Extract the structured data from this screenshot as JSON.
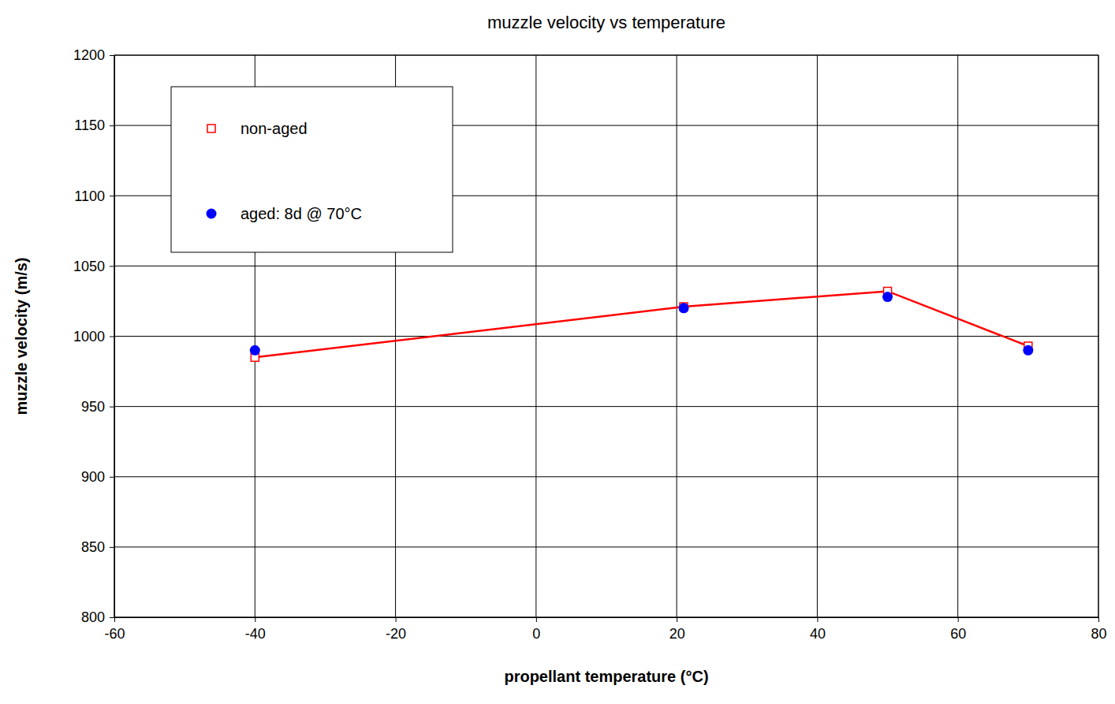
{
  "chart_data": {
    "type": "line",
    "title": "muzzle velocity vs temperature",
    "x_label": "propellant temperature (°C)",
    "y_label": "muzzle velocity (m/s)",
    "x": [
      -40,
      21,
      50,
      70
    ],
    "series": [
      {
        "name": "non-aged",
        "type": "line",
        "color": "#ff0000",
        "marker": "square",
        "line_style": "solid",
        "values": [
          985,
          1021,
          1032,
          993
        ]
      },
      {
        "name": "aged: 8d @ 70°C",
        "type": "scatter",
        "color": "#0000ff",
        "marker": "circle",
        "values": [
          990,
          1020,
          1028,
          990
        ]
      }
    ],
    "xlim": [
      -60,
      80
    ],
    "xticks": [
      -60,
      -40,
      -20,
      0,
      20,
      40,
      60,
      80
    ],
    "ylim": [
      800,
      1200
    ],
    "yticks": [
      800,
      850,
      900,
      950,
      1000,
      1050,
      1100,
      1150,
      1200
    ],
    "grid": true,
    "legend": "upper left"
  }
}
